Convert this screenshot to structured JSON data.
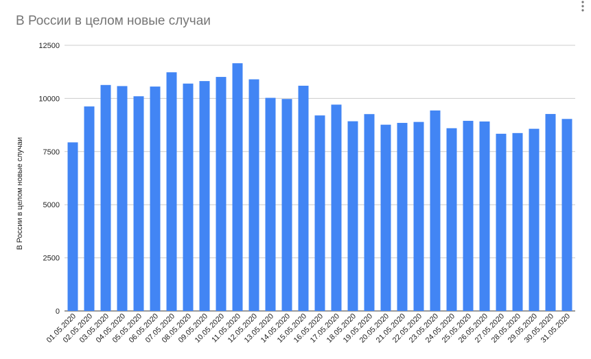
{
  "chart_data": {
    "type": "bar",
    "title": "В России в целом новые случаи",
    "ylabel": "В России в целом новые случаи",
    "xlabel": "",
    "ylim": [
      0,
      12500
    ],
    "yticks": [
      0,
      2500,
      5000,
      7500,
      10000,
      12500
    ],
    "grid": true,
    "legend": "none",
    "bar_color": "#4285f4",
    "categories": [
      "01.05.2020",
      "02.05.2020",
      "03.05.2020",
      "04.05.2020",
      "05.05.2020",
      "06.05.2020",
      "07.05.2020",
      "08.05.2020",
      "09.05.2020",
      "10.05.2020",
      "11.05.2020",
      "12.05.2020",
      "13.05.2020",
      "14.05.2020",
      "15.05.2020",
      "16.05.2020",
      "17.05.2020",
      "18.05.2020",
      "19.05.2020",
      "20.05.2020",
      "21.05.2020",
      "22.05.2020",
      "23.05.2020",
      "24.05.2020",
      "25.05.2020",
      "26.05.2020",
      "27.05.2020",
      "28.05.2020",
      "29.05.2020",
      "30.05.2020",
      "31.05.2020"
    ],
    "values": [
      7933,
      9623,
      10633,
      10581,
      10102,
      10559,
      11231,
      10699,
      10817,
      11012,
      11656,
      10899,
      10028,
      9974,
      10598,
      9200,
      9709,
      8926,
      9263,
      8764,
      8849,
      8894,
      9434,
      8599,
      8946,
      8915,
      8338,
      8371,
      8572,
      9268,
      9035
    ]
  },
  "icons": {
    "menu": "more-vert-icon"
  }
}
